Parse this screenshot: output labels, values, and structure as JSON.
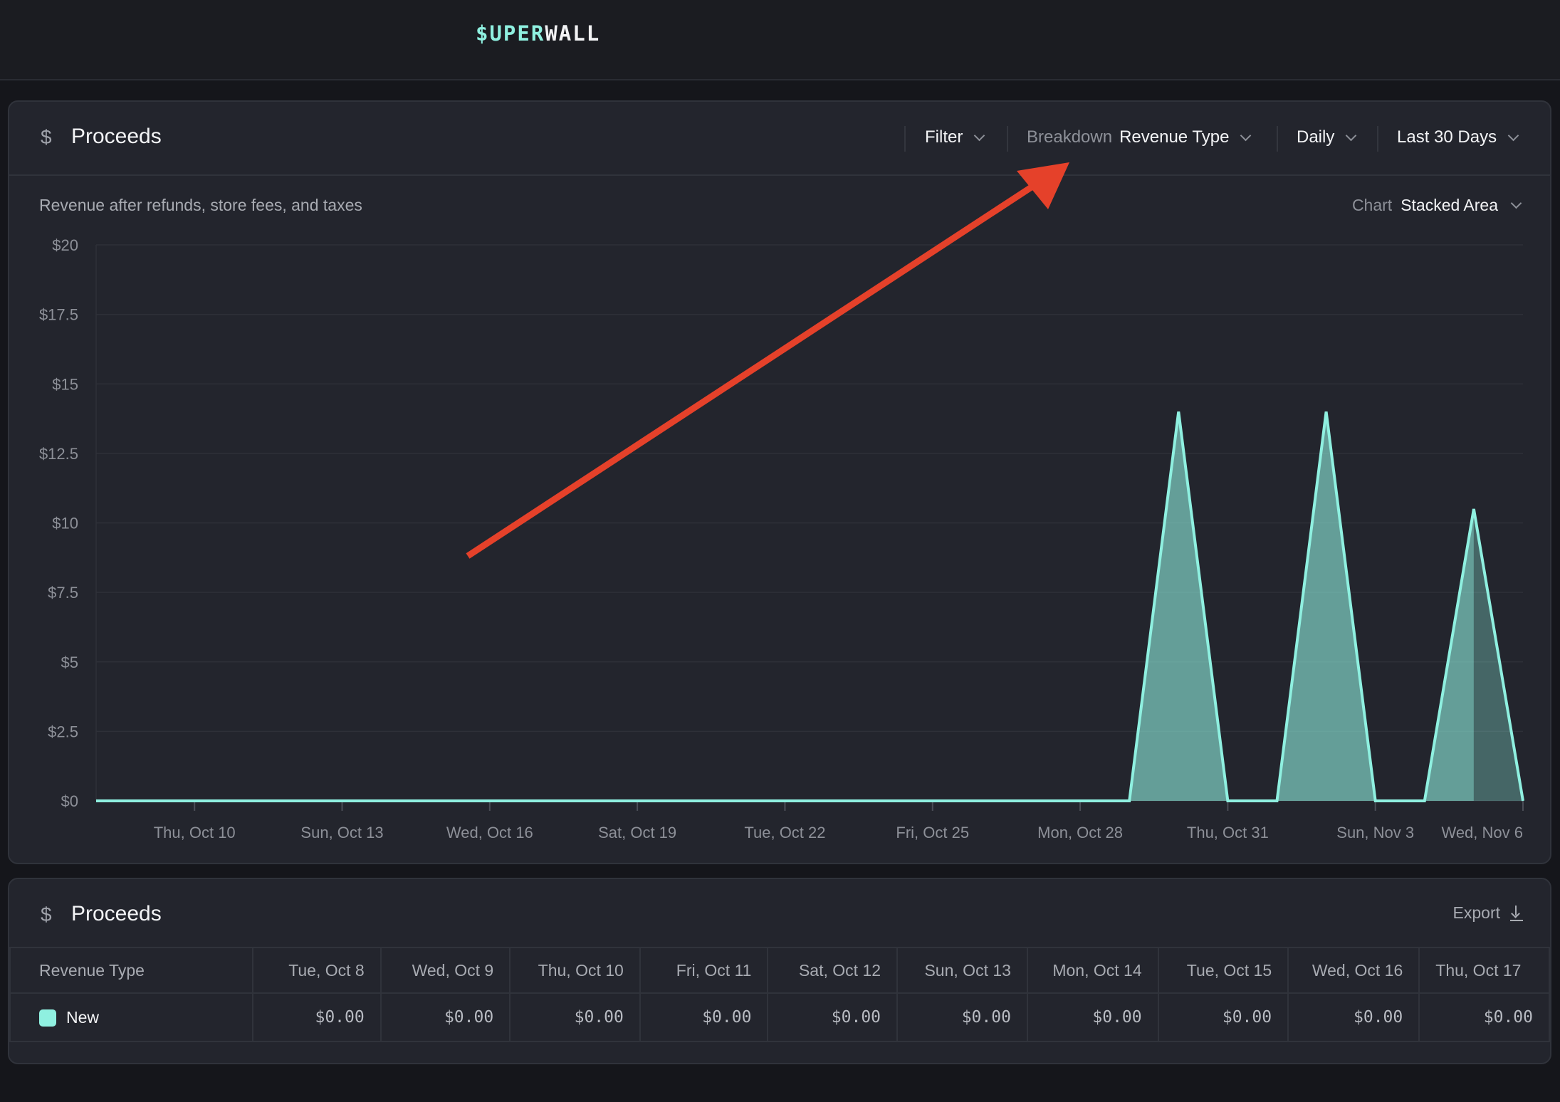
{
  "brand": {
    "logo_part1": "$UPER",
    "logo_part2": "WALL"
  },
  "chart_card": {
    "icon": "dollar-icon",
    "title": "Proceeds",
    "filter_label": "Filter",
    "breakdown_label": "Breakdown",
    "breakdown_value": "Revenue Type",
    "interval_value": "Daily",
    "range_value": "Last 30 Days",
    "subtitle": "Revenue after refunds, store fees, and taxes",
    "chart_type_label": "Chart",
    "chart_type_value": "Stacked Area"
  },
  "chart_data": {
    "type": "area",
    "stacked": true,
    "x": [
      "Oct 8",
      "Oct 9",
      "Oct 10",
      "Oct 11",
      "Oct 12",
      "Oct 13",
      "Oct 14",
      "Oct 15",
      "Oct 16",
      "Oct 17",
      "Oct 18",
      "Oct 19",
      "Oct 20",
      "Oct 21",
      "Oct 22",
      "Oct 23",
      "Oct 24",
      "Oct 25",
      "Oct 26",
      "Oct 27",
      "Oct 28",
      "Oct 29",
      "Oct 30",
      "Oct 31",
      "Nov 1",
      "Nov 2",
      "Nov 3",
      "Nov 4",
      "Nov 5",
      "Nov 6"
    ],
    "series": [
      {
        "name": "New",
        "color": "#8ff0e0",
        "values": [
          0,
          0,
          0,
          0,
          0,
          0,
          0,
          0,
          0,
          0,
          0,
          0,
          0,
          0,
          0,
          0,
          0,
          0,
          0,
          0,
          0,
          0,
          14,
          0,
          0,
          14,
          0,
          0,
          10.5,
          0
        ]
      }
    ],
    "ylim": [
      0,
      20
    ],
    "yticks": [
      "$0",
      "$2.5",
      "$5",
      "$7.5",
      "$10",
      "$12.5",
      "$15",
      "$17.5",
      "$20"
    ],
    "xticks": [
      {
        "index": 2,
        "label": "Thu, Oct 10"
      },
      {
        "index": 5,
        "label": "Sun, Oct 13"
      },
      {
        "index": 8,
        "label": "Wed, Oct 16"
      },
      {
        "index": 11,
        "label": "Sat, Oct 19"
      },
      {
        "index": 14,
        "label": "Tue, Oct 22"
      },
      {
        "index": 17,
        "label": "Fri, Oct 25"
      },
      {
        "index": 20,
        "label": "Mon, Oct 28"
      },
      {
        "index": 23,
        "label": "Thu, Oct 31"
      },
      {
        "index": 26,
        "label": "Sun, Nov 3"
      },
      {
        "index": 29,
        "label": "Wed, Nov 6"
      }
    ],
    "grid": true,
    "incomplete_last_period": true
  },
  "table_card": {
    "icon": "dollar-icon",
    "title": "Proceeds",
    "export_label": "Export",
    "columns": [
      "Revenue Type",
      "Tue, Oct 8",
      "Wed, Oct 9",
      "Thu, Oct 10",
      "Fri, Oct 11",
      "Sat, Oct 12",
      "Sun, Oct 13",
      "Mon, Oct 14",
      "Tue, Oct 15",
      "Wed, Oct 16",
      "Thu, Oct 17"
    ],
    "rows": [
      {
        "label": "New",
        "color": "#8ff0e0",
        "values": [
          "$0.00",
          "$0.00",
          "$0.00",
          "$0.00",
          "$0.00",
          "$0.00",
          "$0.00",
          "$0.00",
          "$0.00",
          "$0.00"
        ]
      }
    ]
  },
  "annotation": {
    "arrow_color": "#e5412a"
  }
}
